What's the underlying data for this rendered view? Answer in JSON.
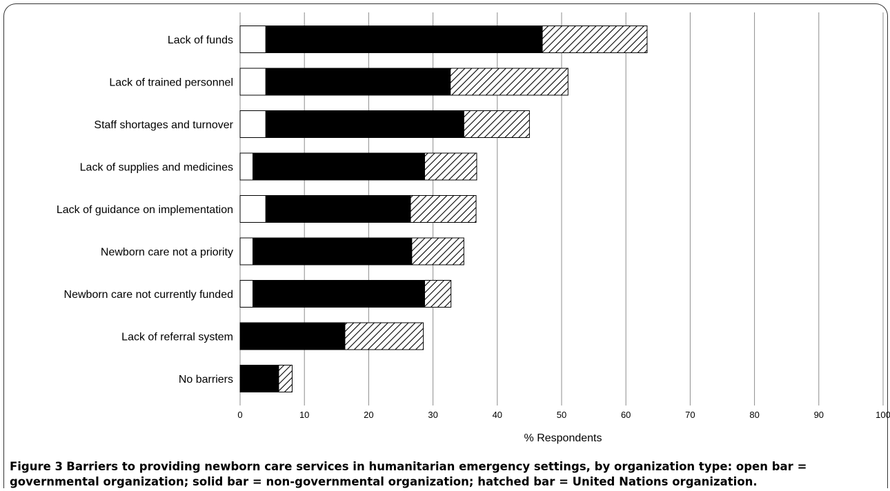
{
  "caption": {
    "figure_number": "Figure 3",
    "text": "Barriers to providing newborn care services in humanitarian emergency settings, by organization type: open bar = governmental organization; solid bar = non-governmental organization; hatched bar = United Nations organization."
  },
  "chart_data": {
    "type": "bar",
    "orientation": "horizontal",
    "stacked": true,
    "categories": [
      "Lack of funds",
      "Lack of trained personnel",
      "Staff shortages and turnover",
      "Lack of supplies and medicines",
      "Lack of guidance on implementation",
      "Newborn care not a priority",
      "Newborn care not currently funded",
      "Lack of referral system",
      "No barriers"
    ],
    "series": [
      {
        "fill": "#ffffff",
        "pattern": "open",
        "values": [
          4,
          4,
          4,
          2,
          4,
          2,
          2,
          0,
          0
        ]
      },
      {
        "fill": "#000000",
        "pattern": "solid",
        "values": [
          43,
          28.7,
          30.8,
          26.7,
          22.5,
          24.7,
          26.7,
          16.3,
          6
        ]
      },
      {
        "fill": "#ffffff",
        "pattern": "hatched",
        "values": [
          16.3,
          18.3,
          10.2,
          8.1,
          10.2,
          8.1,
          4.1,
          12.2,
          2.1
        ]
      }
    ],
    "xlabel": "% Respondents",
    "ylabel": "",
    "xlim": [
      0,
      100
    ],
    "xticks": [
      "0",
      "10",
      "20",
      "30",
      "40",
      "50",
      "60",
      "70",
      "80",
      "90",
      "100"
    ],
    "grid": "vertical"
  }
}
